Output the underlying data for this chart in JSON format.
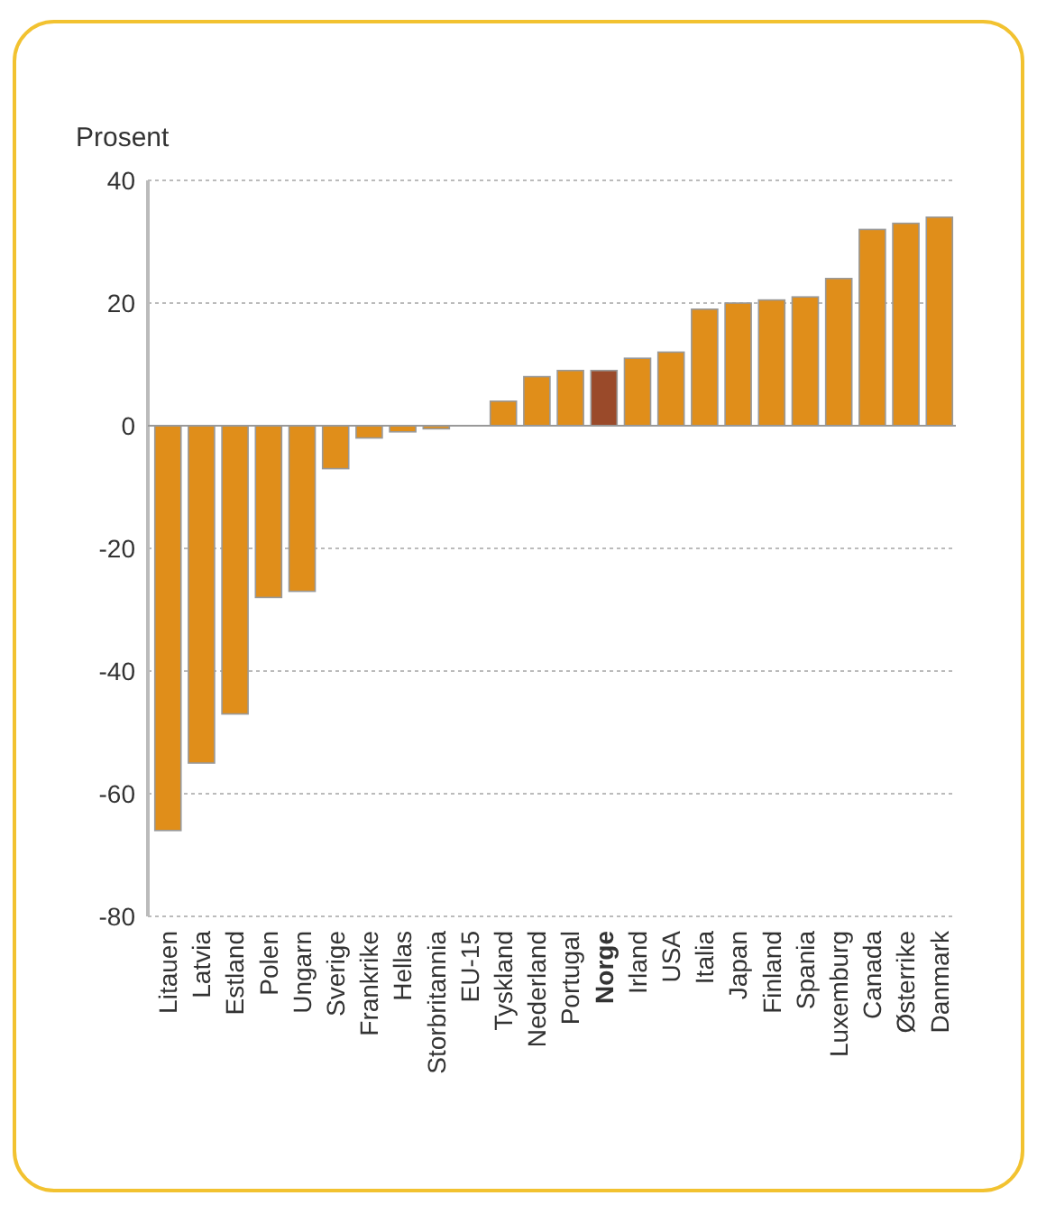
{
  "chart_data": {
    "type": "bar",
    "ylabel": "Prosent",
    "categories": [
      "Litauen",
      "Latvia",
      "Estland",
      "Polen",
      "Ungarn",
      "Sverige",
      "Frankrike",
      "Hellas",
      "Storbritannia",
      "EU-15",
      "Tyskland",
      "Nederland",
      "Portugal",
      "Norge",
      "Irland",
      "USA",
      "Italia",
      "Japan",
      "Finland",
      "Spania",
      "Luxemburg",
      "Canada",
      "Østerrike",
      "Danmark"
    ],
    "values": [
      -66,
      -55,
      -47,
      -28,
      -27,
      -7,
      -2,
      -1,
      -0.5,
      0,
      4,
      8,
      9,
      9,
      11,
      12,
      19,
      20,
      20.5,
      21,
      24,
      32,
      33,
      34
    ],
    "colors": [
      "#e08e1a",
      "#e08e1a",
      "#e08e1a",
      "#e08e1a",
      "#e08e1a",
      "#e08e1a",
      "#e08e1a",
      "#e08e1a",
      "#e08e1a",
      "#e08e1a",
      "#e08e1a",
      "#e08e1a",
      "#e08e1a",
      "#9a4a2a",
      "#e08e1a",
      "#e08e1a",
      "#e08e1a",
      "#e08e1a",
      "#e08e1a",
      "#e08e1a",
      "#e08e1a",
      "#e08e1a",
      "#e08e1a",
      "#e08e1a"
    ],
    "ylim": [
      -80,
      40
    ],
    "yticks": [
      -80,
      -60,
      -40,
      -20,
      0,
      20,
      40
    ],
    "grid": "y"
  }
}
